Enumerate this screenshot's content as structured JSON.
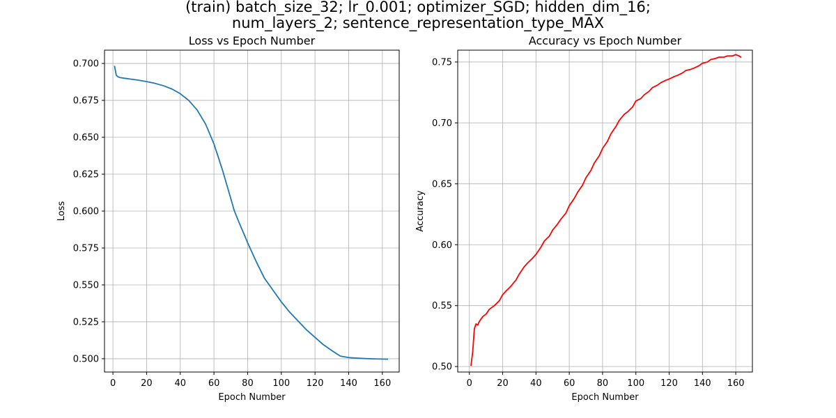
{
  "figure": {
    "suptitle_line1": "(train) batch_size_32; lr_0.001; optimizer_SGD; hidden_dim_16;",
    "suptitle_line2": "num_layers_2; sentence_representation_type_MAX"
  },
  "chart_data": [
    {
      "type": "line",
      "title": "Loss vs Epoch Number",
      "xlabel": "Epoch Number",
      "ylabel": "Loss",
      "xlim": [
        -5,
        170
      ],
      "ylim": [
        0.491,
        0.709
      ],
      "xticks": [
        0,
        20,
        40,
        60,
        80,
        100,
        120,
        140,
        160
      ],
      "yticks": [
        0.5,
        0.525,
        0.55,
        0.575,
        0.6,
        0.625,
        0.65,
        0.675,
        0.7
      ],
      "ytick_labels": [
        "0.500",
        "0.525",
        "0.550",
        "0.575",
        "0.600",
        "0.625",
        "0.650",
        "0.675",
        "0.700"
      ],
      "grid": true,
      "color": "#1f77b4",
      "series": [
        {
          "x": [
            1,
            2,
            3,
            4,
            5,
            6,
            8,
            10,
            15,
            20,
            25,
            30,
            35,
            40,
            45,
            50,
            55,
            60,
            65,
            70,
            72,
            75,
            78,
            80,
            85,
            90,
            95,
            100,
            105,
            110,
            115,
            120,
            125,
            130,
            135,
            140,
            145,
            150,
            155,
            160,
            163
          ],
          "y": [
            0.698,
            0.692,
            0.691,
            0.6905,
            0.6903,
            0.6901,
            0.6898,
            0.6895,
            0.6887,
            0.6877,
            0.6865,
            0.6849,
            0.6827,
            0.6795,
            0.675,
            0.6685,
            0.659,
            0.6455,
            0.628,
            0.6085,
            0.6005,
            0.592,
            0.584,
            0.5785,
            0.566,
            0.5545,
            0.5465,
            0.5385,
            0.5315,
            0.5255,
            0.5195,
            0.5145,
            0.5095,
            0.5055,
            0.5018,
            0.5008,
            0.5004,
            0.5001,
            0.4999,
            0.4998,
            0.4997
          ]
        }
      ]
    },
    {
      "type": "line",
      "title": "Accuracy vs Epoch Number",
      "xlabel": "Epoch Number",
      "ylabel": "Accuracy",
      "xlim": [
        -7,
        170
      ],
      "ylim": [
        0.4955,
        0.7597
      ],
      "xticks": [
        0,
        20,
        40,
        60,
        80,
        100,
        120,
        140,
        160
      ],
      "yticks": [
        0.5,
        0.55,
        0.6,
        0.65,
        0.7,
        0.75
      ],
      "ytick_labels": [
        "0.50",
        "0.55",
        "0.60",
        "0.65",
        "0.70",
        "0.75"
      ],
      "grid": true,
      "color": "#ff0000",
      "series": [
        {
          "x": [
            1,
            2,
            3,
            4,
            5,
            6,
            8,
            10,
            12,
            15,
            18,
            20,
            22,
            25,
            28,
            30,
            33,
            35,
            38,
            40,
            43,
            45,
            48,
            50,
            53,
            55,
            58,
            60,
            63,
            65,
            68,
            70,
            73,
            75,
            78,
            80,
            83,
            85,
            88,
            90,
            93,
            95,
            98,
            100,
            103,
            105,
            108,
            110,
            113,
            115,
            118,
            120,
            123,
            125,
            128,
            130,
            133,
            135,
            138,
            140,
            143,
            145,
            148,
            150,
            153,
            155,
            158,
            160,
            162,
            163
          ],
          "y": [
            0.501,
            0.512,
            0.531,
            0.535,
            0.534,
            0.537,
            0.541,
            0.543,
            0.547,
            0.55,
            0.554,
            0.559,
            0.562,
            0.566,
            0.571,
            0.576,
            0.582,
            0.585,
            0.589,
            0.592,
            0.598,
            0.603,
            0.607,
            0.612,
            0.617,
            0.621,
            0.626,
            0.632,
            0.638,
            0.643,
            0.649,
            0.655,
            0.661,
            0.667,
            0.673,
            0.679,
            0.685,
            0.691,
            0.697,
            0.702,
            0.707,
            0.709,
            0.713,
            0.718,
            0.72,
            0.723,
            0.726,
            0.729,
            0.731,
            0.733,
            0.735,
            0.736,
            0.738,
            0.739,
            0.741,
            0.743,
            0.744,
            0.745,
            0.747,
            0.749,
            0.75,
            0.752,
            0.753,
            0.754,
            0.754,
            0.755,
            0.755,
            0.756,
            0.755,
            0.754
          ]
        }
      ]
    }
  ]
}
